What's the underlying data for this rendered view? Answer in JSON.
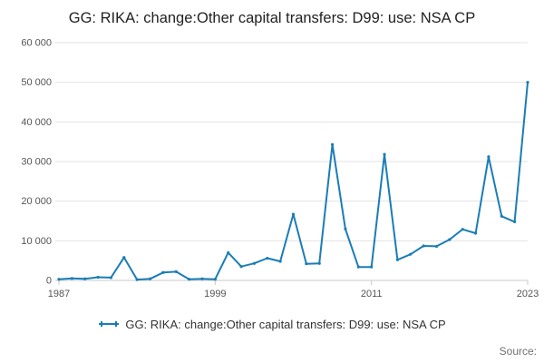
{
  "header": {
    "title": "GG: RIKA: change:Other capital transfers: D99: use: NSA CP"
  },
  "legend": {
    "label": "GG: RIKA: change:Other capital transfers: D99: use: NSA CP"
  },
  "footer": {
    "source_label": "Source:"
  },
  "colors": {
    "line": "#1a7db6",
    "grid": "#e3e3e3",
    "axis": "#c9c9c9",
    "tick_text": "#555555"
  },
  "chart_data": {
    "type": "line",
    "title": "GG: RIKA: change:Other capital transfers: D99: use: NSA CP",
    "xlabel": "",
    "ylabel": "",
    "x": [
      1987,
      1988,
      1989,
      1990,
      1991,
      1992,
      1993,
      1994,
      1995,
      1996,
      1997,
      1998,
      1999,
      2000,
      2001,
      2002,
      2003,
      2004,
      2005,
      2006,
      2007,
      2008,
      2009,
      2010,
      2011,
      2012,
      2013,
      2014,
      2015,
      2016,
      2017,
      2018,
      2019,
      2020,
      2021,
      2022,
      2023
    ],
    "values": [
      300,
      500,
      400,
      800,
      700,
      5800,
      200,
      400,
      2000,
      2200,
      300,
      400,
      300,
      7000,
      3500,
      4300,
      5600,
      4800,
      16700,
      4200,
      4300,
      34300,
      13000,
      3400,
      3400,
      31800,
      5200,
      6600,
      8700,
      8600,
      10300,
      12900,
      11900,
      31200,
      16200,
      14800,
      50000
    ],
    "xlim": [
      1987,
      2023
    ],
    "ylim": [
      0,
      60000
    ],
    "yticks": [
      0,
      10000,
      20000,
      30000,
      40000,
      50000,
      60000
    ],
    "ytick_labels": [
      "0",
      "10 000",
      "20 000",
      "30 000",
      "40 000",
      "50 000",
      "60 000"
    ],
    "xticks": [
      1987,
      1999,
      2011,
      2023
    ],
    "xtick_labels": [
      "1987",
      "1999",
      "2011",
      "2023"
    ],
    "grid": "horizontal",
    "legend_position": "bottom"
  }
}
